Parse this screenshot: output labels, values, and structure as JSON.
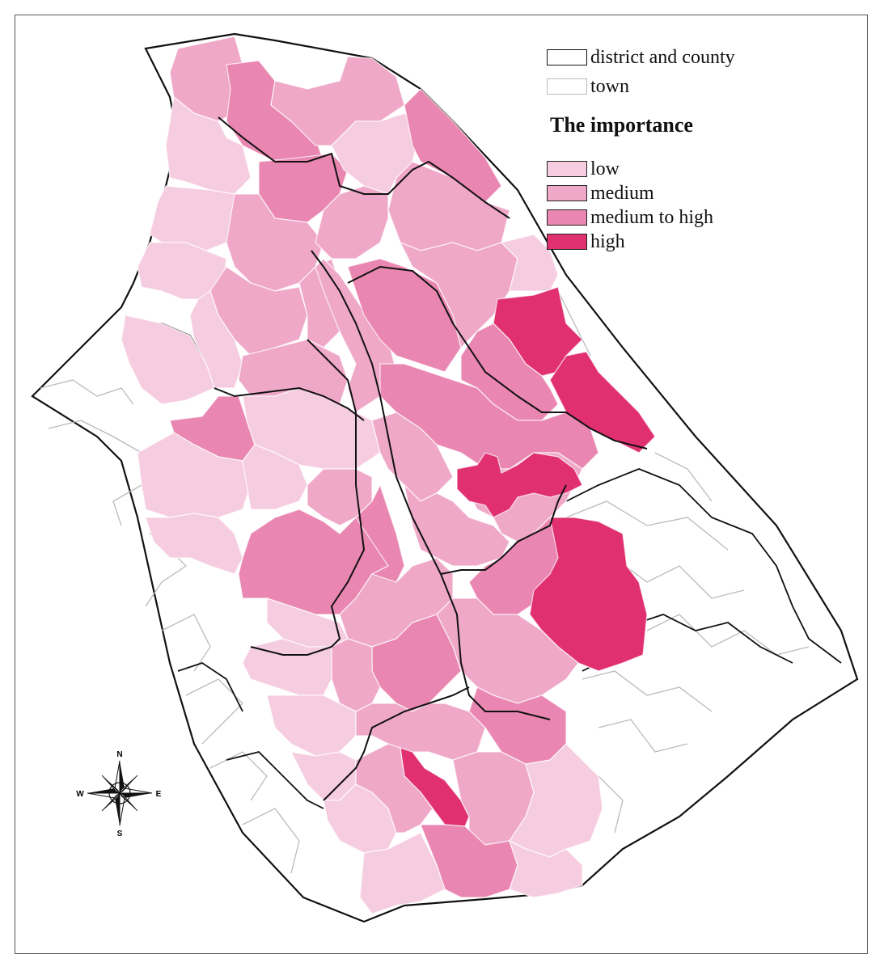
{
  "legend": {
    "boundaries": [
      {
        "label": "district and county",
        "border": "#111111",
        "fill": "#ffffff"
      },
      {
        "label": "town",
        "border": "#bbbbbb",
        "fill": "#ffffff"
      }
    ],
    "title": "The importance",
    "classes": [
      {
        "label": "low",
        "color": "#f6cde0"
      },
      {
        "label": "medium",
        "color": "#efa8c8"
      },
      {
        "label": "medium to high",
        "color": "#e986b1"
      },
      {
        "label": "high",
        "color": "#e0306f"
      }
    ]
  },
  "compass": {
    "north": "N",
    "south": "S",
    "east": "E",
    "west": "W"
  },
  "colors": {
    "outline": "#111111",
    "town_border": "#bbbbbb",
    "background": "#ffffff"
  }
}
